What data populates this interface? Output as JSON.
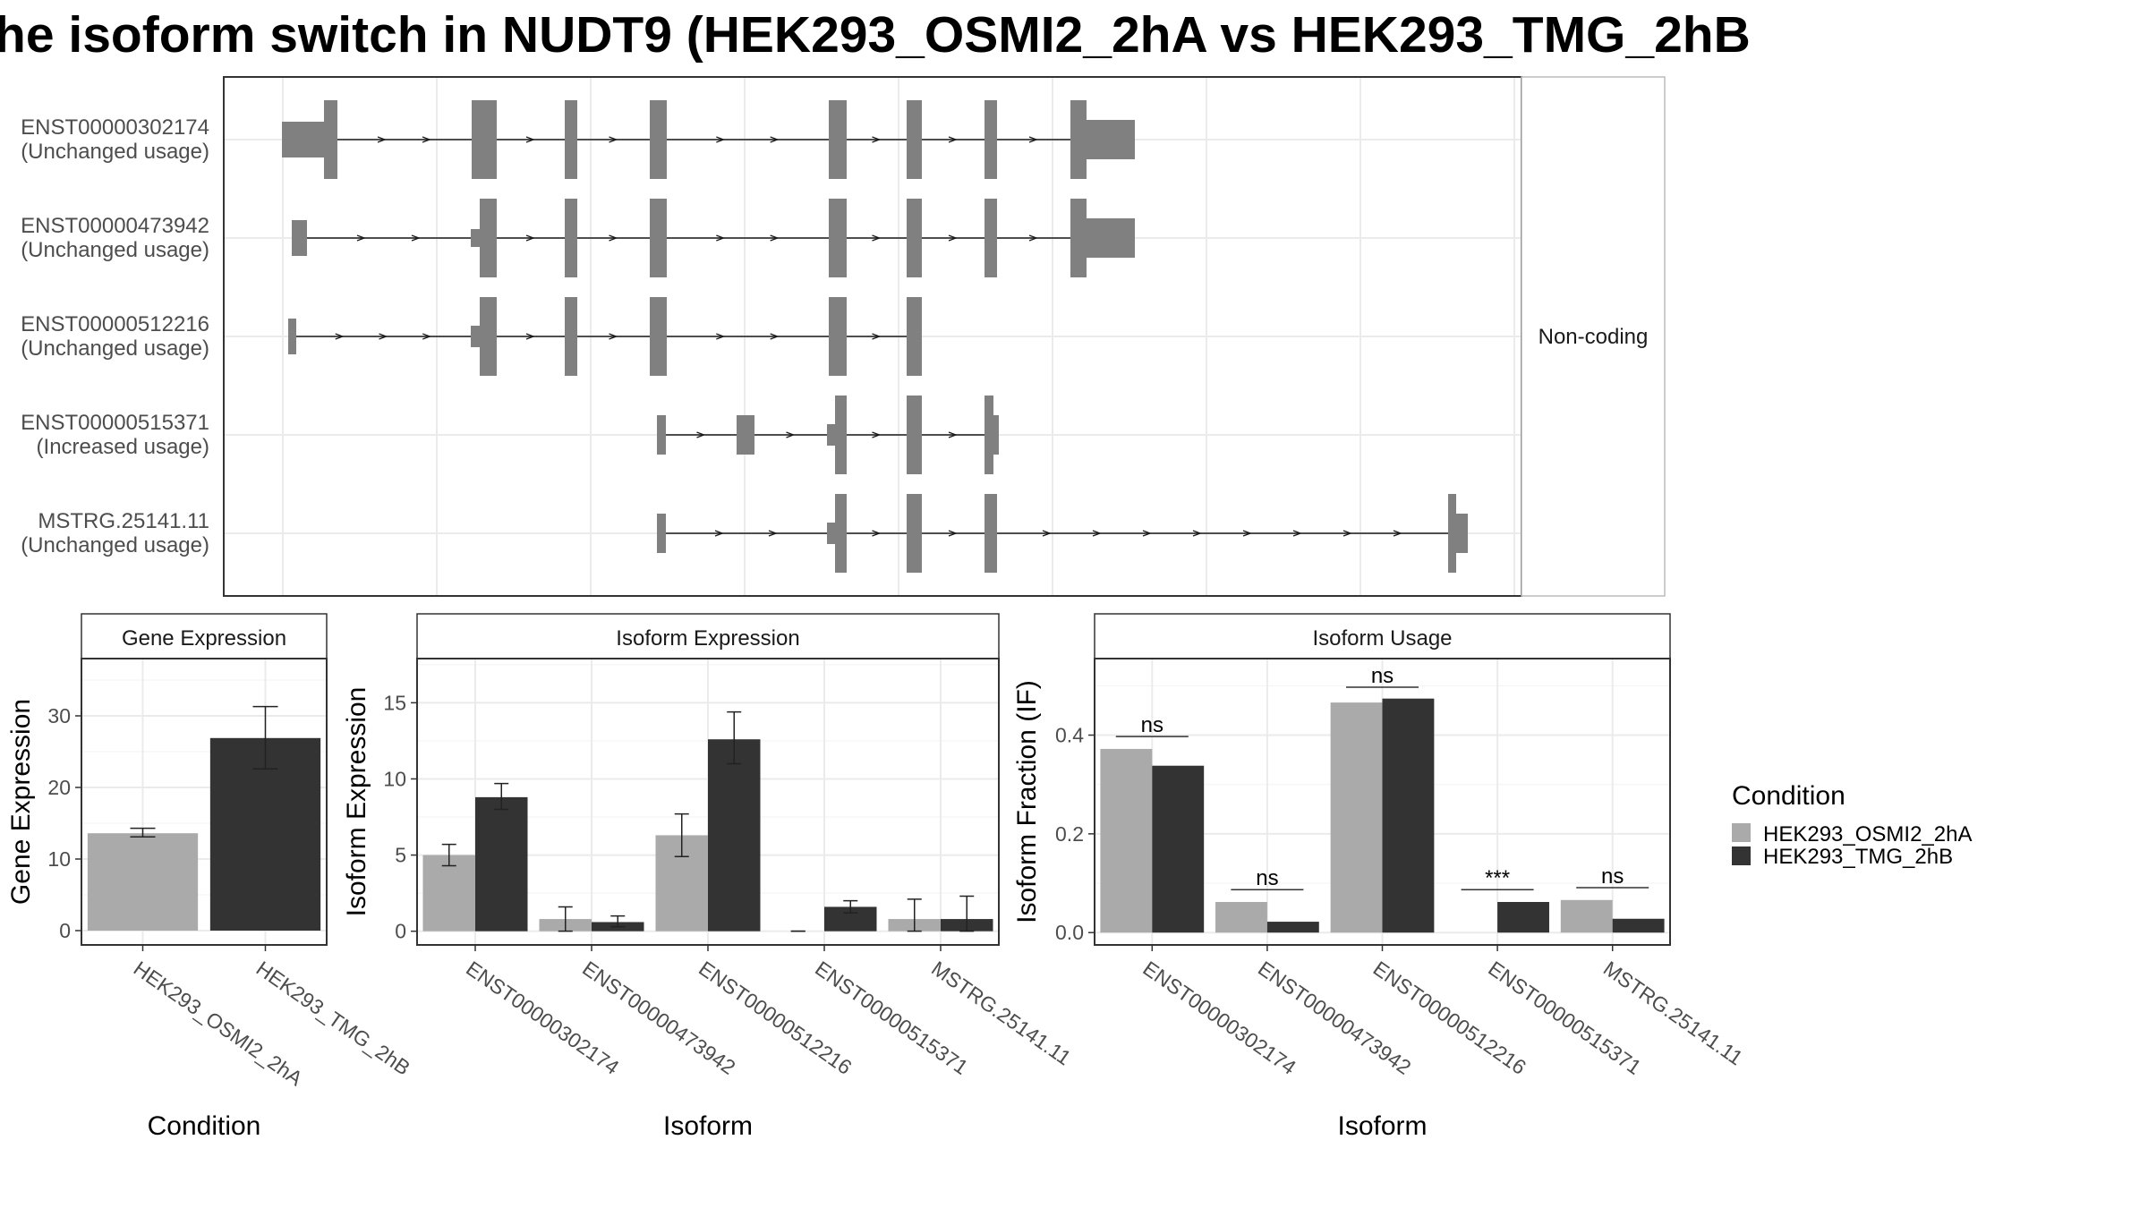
{
  "title": "he isoform switch in NUDT9 (HEK293_OSMI2_2hA vs HEK293_TMG_2hB",
  "structure": {
    "strip_label": "Non-coding",
    "transcripts": [
      {
        "id": "ENST00000302174",
        "status": "(Unchanged usage)"
      },
      {
        "id": "ENST00000473942",
        "status": "(Unchanged usage)"
      },
      {
        "id": "ENST00000512216",
        "status": "(Unchanged usage)"
      },
      {
        "id": "ENST00000515371",
        "status": "(Increased usage)"
      },
      {
        "id": "MSTRG.25141.11",
        "status": "(Unchanged usage)"
      }
    ]
  },
  "legend": {
    "title": "Condition",
    "entries": [
      {
        "label": "HEK293_OSMI2_2hA",
        "color": "#aaaaaa"
      },
      {
        "label": "HEK293_TMG_2hB",
        "color": "#333333"
      }
    ]
  },
  "colors": {
    "condition_a": "#aaaaaa",
    "condition_b": "#333333",
    "exon": "#808080",
    "grid": "#ebebeb",
    "panel_border": "#333333"
  },
  "chart_data": [
    {
      "type": "bar",
      "strip": "Gene Expression",
      "xlabel": "Condition",
      "ylabel": "Gene Expression",
      "ylim": [
        -2,
        38
      ],
      "yticks": [
        0,
        10,
        20,
        30
      ],
      "categories": [
        "HEK293_OSMI2_2hA",
        "HEK293_TMG_2hB"
      ],
      "values": [
        13.6,
        26.9
      ],
      "error_low": [
        13.1,
        22.6
      ],
      "error_high": [
        14.3,
        31.3
      ],
      "bar_colors": [
        "#aaaaaa",
        "#333333"
      ]
    },
    {
      "type": "bar",
      "strip": "Isoform Expression",
      "xlabel": "Isoform",
      "ylabel": "Isoform Expression",
      "ylim": [
        -0.9,
        17.9
      ],
      "yticks": [
        0,
        5,
        10,
        15
      ],
      "categories": [
        "ENST00000302174",
        "ENST00000473942",
        "ENST00000512216",
        "ENST00000515371",
        "MSTRG.25141.11"
      ],
      "series": [
        {
          "name": "HEK293_OSMI2_2hA",
          "color": "#aaaaaa",
          "values": [
            5.0,
            0.8,
            6.3,
            0.0,
            0.8
          ],
          "error_low": [
            4.3,
            0.0,
            4.9,
            0.0,
            0.0
          ],
          "error_high": [
            5.7,
            1.6,
            7.7,
            0.0,
            2.1
          ]
        },
        {
          "name": "HEK293_TMG_2hB",
          "color": "#333333",
          "values": [
            8.8,
            0.6,
            12.6,
            1.6,
            0.8
          ],
          "error_low": [
            8.0,
            0.3,
            11.0,
            1.2,
            0.0
          ],
          "error_high": [
            9.7,
            1.0,
            14.4,
            2.0,
            2.3
          ]
        }
      ]
    },
    {
      "type": "bar",
      "strip": "Isoform Usage",
      "xlabel": "Isoform",
      "ylabel": "Isoform Fraction (IF)",
      "ylim": [
        -0.025,
        0.555
      ],
      "yticks": [
        0.0,
        0.2,
        0.4
      ],
      "ytick_labels": [
        "0.0",
        "0.2",
        "0.4"
      ],
      "categories": [
        "ENST00000302174",
        "ENST00000473942",
        "ENST00000512216",
        "ENST00000515371",
        "MSTRG.25141.11"
      ],
      "series": [
        {
          "name": "HEK293_OSMI2_2hA",
          "color": "#aaaaaa",
          "values": [
            0.372,
            0.062,
            0.466,
            0.0,
            0.066
          ]
        },
        {
          "name": "HEK293_TMG_2hB",
          "color": "#333333",
          "values": [
            0.338,
            0.022,
            0.474,
            0.062,
            0.028
          ]
        }
      ],
      "significance": [
        {
          "label": "ns",
          "y": 0.397
        },
        {
          "label": "ns",
          "y": 0.087
        },
        {
          "label": "ns",
          "y": 0.497
        },
        {
          "label": "***",
          "y": 0.087
        },
        {
          "label": "ns",
          "y": 0.091
        }
      ]
    }
  ]
}
